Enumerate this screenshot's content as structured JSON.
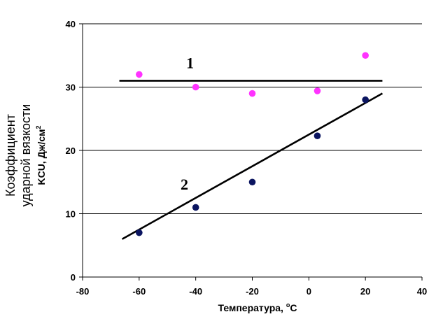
{
  "chart_data": {
    "type": "scatter",
    "title": "",
    "xlabel": "Температура, ",
    "xlabel_unit": "C",
    "xlabel_degree": "o",
    "ylabel_line1": "Коэффициент",
    "ylabel_line2": "ударной вязкости",
    "ylabel_line3": "KCU, Дж/см",
    "ylabel_exp": "2",
    "xlim": [
      -80,
      40
    ],
    "ylim": [
      0,
      40
    ],
    "xticks": [
      -80,
      -60,
      -40,
      -20,
      0,
      20,
      40
    ],
    "yticks": [
      0,
      10,
      20,
      30,
      40
    ],
    "grid": "horizontal",
    "legend": "none",
    "series": [
      {
        "name": "1",
        "color": "#ff33ff",
        "points": [
          {
            "x": -60,
            "y": 32
          },
          {
            "x": -40,
            "y": 30
          },
          {
            "x": -20,
            "y": 29
          },
          {
            "x": 3,
            "y": 29.4
          },
          {
            "x": 20,
            "y": 35
          }
        ],
        "trend": {
          "x": [
            -67,
            26
          ],
          "y": [
            31,
            31
          ]
        },
        "label_at": {
          "x": -42,
          "y": 33
        }
      },
      {
        "name": "2",
        "color": "#0b1560",
        "points": [
          {
            "x": -60,
            "y": 7
          },
          {
            "x": -40,
            "y": 11
          },
          {
            "x": -20,
            "y": 15
          },
          {
            "x": 3,
            "y": 22.3
          },
          {
            "x": 20,
            "y": 28
          }
        ],
        "trend": {
          "x": [
            -66,
            26
          ],
          "y": [
            6,
            29
          ]
        },
        "label_at": {
          "x": -44,
          "y": 13.8
        }
      }
    ]
  }
}
